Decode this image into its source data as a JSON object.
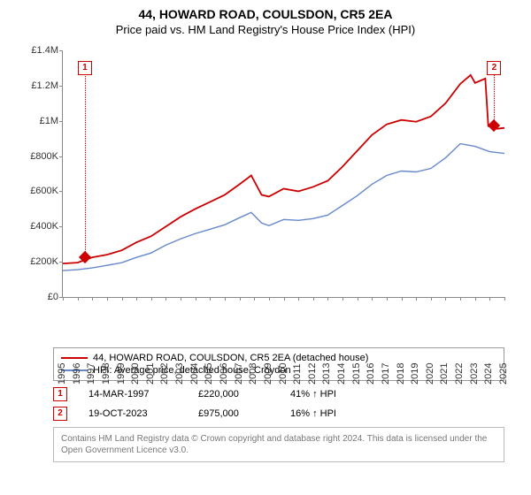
{
  "title": "44, HOWARD ROAD, COULSDON, CR5 2EA",
  "subtitle": "Price paid vs. HM Land Registry's House Price Index (HPI)",
  "chart": {
    "type": "line",
    "xlim": [
      1995,
      2025
    ],
    "ylim": [
      0,
      1400000
    ],
    "ytick_step": 200000,
    "yticks": [
      "£0",
      "£200K",
      "£400K",
      "£600K",
      "£800K",
      "£1M",
      "£1.2M",
      "£1.4M"
    ],
    "xtick_step": 1,
    "red_color": "#cc0000",
    "blue_color": "#6688cc",
    "line_width_red": 1.8,
    "line_width_blue": 1.4,
    "background": "#ffffff",
    "series_red": [
      [
        1995,
        190000
      ],
      [
        1996,
        195000
      ],
      [
        1997,
        225000
      ],
      [
        1998,
        240000
      ],
      [
        1999,
        265000
      ],
      [
        2000,
        310000
      ],
      [
        2001,
        345000
      ],
      [
        2002,
        400000
      ],
      [
        2003,
        455000
      ],
      [
        2004,
        500000
      ],
      [
        2005,
        540000
      ],
      [
        2006,
        580000
      ],
      [
        2007,
        640000
      ],
      [
        2007.8,
        690000
      ],
      [
        2008.5,
        580000
      ],
      [
        2009,
        570000
      ],
      [
        2010,
        615000
      ],
      [
        2011,
        600000
      ],
      [
        2012,
        625000
      ],
      [
        2013,
        660000
      ],
      [
        2014,
        740000
      ],
      [
        2015,
        830000
      ],
      [
        2016,
        920000
      ],
      [
        2017,
        980000
      ],
      [
        2018,
        1005000
      ],
      [
        2019,
        995000
      ],
      [
        2020,
        1025000
      ],
      [
        2021,
        1100000
      ],
      [
        2022,
        1210000
      ],
      [
        2022.7,
        1260000
      ],
      [
        2023,
        1215000
      ],
      [
        2023.7,
        1240000
      ],
      [
        2023.9,
        970000
      ],
      [
        2024.5,
        955000
      ],
      [
        2025,
        960000
      ]
    ],
    "series_blue": [
      [
        1995,
        150000
      ],
      [
        1996,
        155000
      ],
      [
        1997,
        165000
      ],
      [
        1998,
        180000
      ],
      [
        1999,
        195000
      ],
      [
        2000,
        225000
      ],
      [
        2001,
        250000
      ],
      [
        2002,
        295000
      ],
      [
        2003,
        330000
      ],
      [
        2004,
        360000
      ],
      [
        2005,
        385000
      ],
      [
        2006,
        410000
      ],
      [
        2007,
        450000
      ],
      [
        2007.8,
        480000
      ],
      [
        2008.5,
        420000
      ],
      [
        2009,
        405000
      ],
      [
        2010,
        440000
      ],
      [
        2011,
        435000
      ],
      [
        2012,
        445000
      ],
      [
        2013,
        465000
      ],
      [
        2014,
        520000
      ],
      [
        2015,
        575000
      ],
      [
        2016,
        640000
      ],
      [
        2017,
        690000
      ],
      [
        2018,
        715000
      ],
      [
        2019,
        710000
      ],
      [
        2020,
        730000
      ],
      [
        2021,
        790000
      ],
      [
        2022,
        870000
      ],
      [
        2023,
        855000
      ],
      [
        2024,
        825000
      ],
      [
        2025,
        815000
      ]
    ],
    "markers": [
      {
        "n": "1",
        "year": 1996.5,
        "ybox": 1300000,
        "ydot": 225000
      },
      {
        "n": "2",
        "year": 2024.3,
        "ybox": 1300000,
        "ydot": 975000
      }
    ]
  },
  "legend": [
    {
      "color": "#cc0000",
      "label": "44, HOWARD ROAD, COULSDON, CR5 2EA (detached house)"
    },
    {
      "color": "#6688cc",
      "label": "HPI: Average price, detached house, Croydon"
    }
  ],
  "transactions": [
    {
      "n": "1",
      "date": "14-MAR-1997",
      "price": "£220,000",
      "diff": "41% ↑ HPI"
    },
    {
      "n": "2",
      "date": "19-OCT-2023",
      "price": "£975,000",
      "diff": "16% ↑ HPI"
    }
  ],
  "footer": "Contains HM Land Registry data © Crown copyright and database right 2024. This data is licensed under the Open Government Licence v3.0."
}
